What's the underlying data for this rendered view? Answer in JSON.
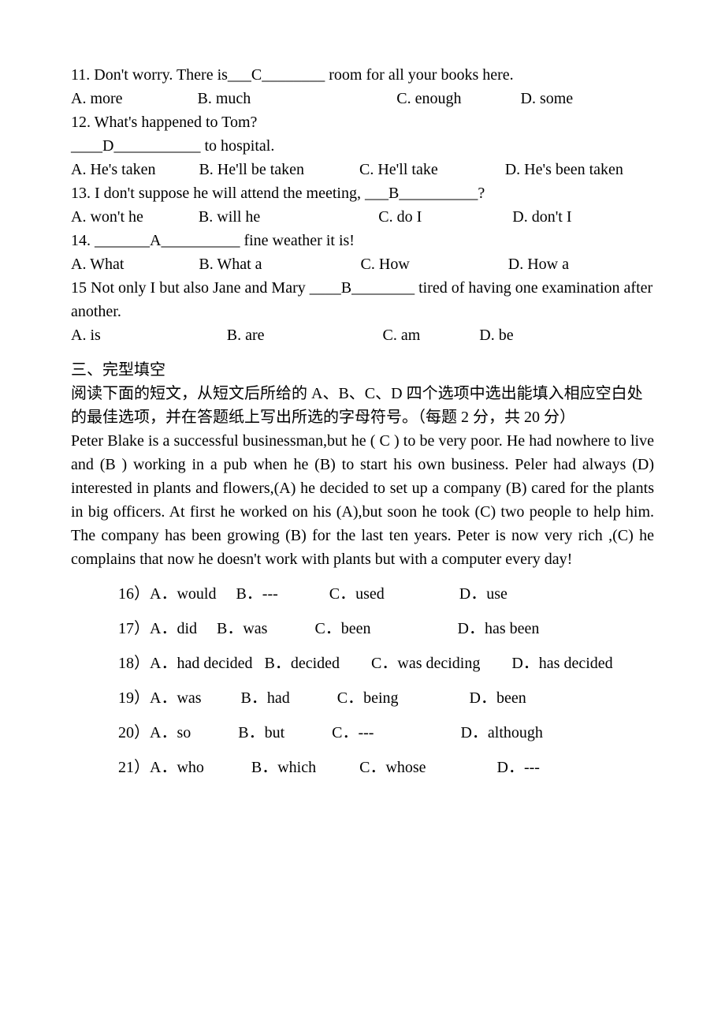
{
  "questions": {
    "q11": {
      "text": "11. Don't worry. There is___C________ room for all your books here.",
      "opts": "A. more                   B. much                                     C. enough               D. some"
    },
    "q12": {
      "text": "12. What's happened to Tom?",
      "blank": "____D___________ to hospital.",
      "opts": "A. He's taken           B. He'll be taken              C. He'll take                 D. He's been taken"
    },
    "q13": {
      "text": "13. I don't suppose he will attend the meeting, ___B__________?",
      "opts": "A. won't he              B. will he                              C. do I                       D. don't I"
    },
    "q14": {
      "text": "14. _______A__________ fine weather it is!",
      "opts": "A. What                   B. What a                         C. How                         D. How a"
    },
    "q15": {
      "text": "15 Not only I but also Jane and Mary ____B________ tired of having one examination after another.",
      "opts": "A. is                                B. are                              C. am               D. be"
    }
  },
  "section3": {
    "title": "三、完型填空",
    "instr": "阅读下面的短文，从短文后所给的 A、B、C、D 四个选项中选出能填入相应空白处的最佳选项，并在答题纸上写出所选的字母符号。（每题 2 分，共 20 分）",
    "passage": "Peter Blake is a successful businessman,but he ( C ) to be very poor. He had nowhere to live and (B ) working in a pub when he (B) to start his own business. Peler had always (D) interested in plants and flowers,(A) he decided to set up a company (B) cared for the plants in big officers. At first he worked on his (A),but soon he took (C) two people to help him. The company has been growing (B) for the last ten years. Peter is now very rich ,(C) he complains that now he doesn't work with plants but with a computer every day!",
    "o16": "16）A．would     B．---             C．used                   D．use",
    "o17": "17）A．did     B．was            C．been                      D．has been",
    "o18": "18）A．had decided   B．decided        C．was deciding        D．has  decided",
    "o19": "19）A．was          B．had            C．being                  D．been",
    "o20": "20）A．so            B．but            C．---                      D．although",
    "o21": "21）A．who            B．which           C．whose                  D．---"
  }
}
